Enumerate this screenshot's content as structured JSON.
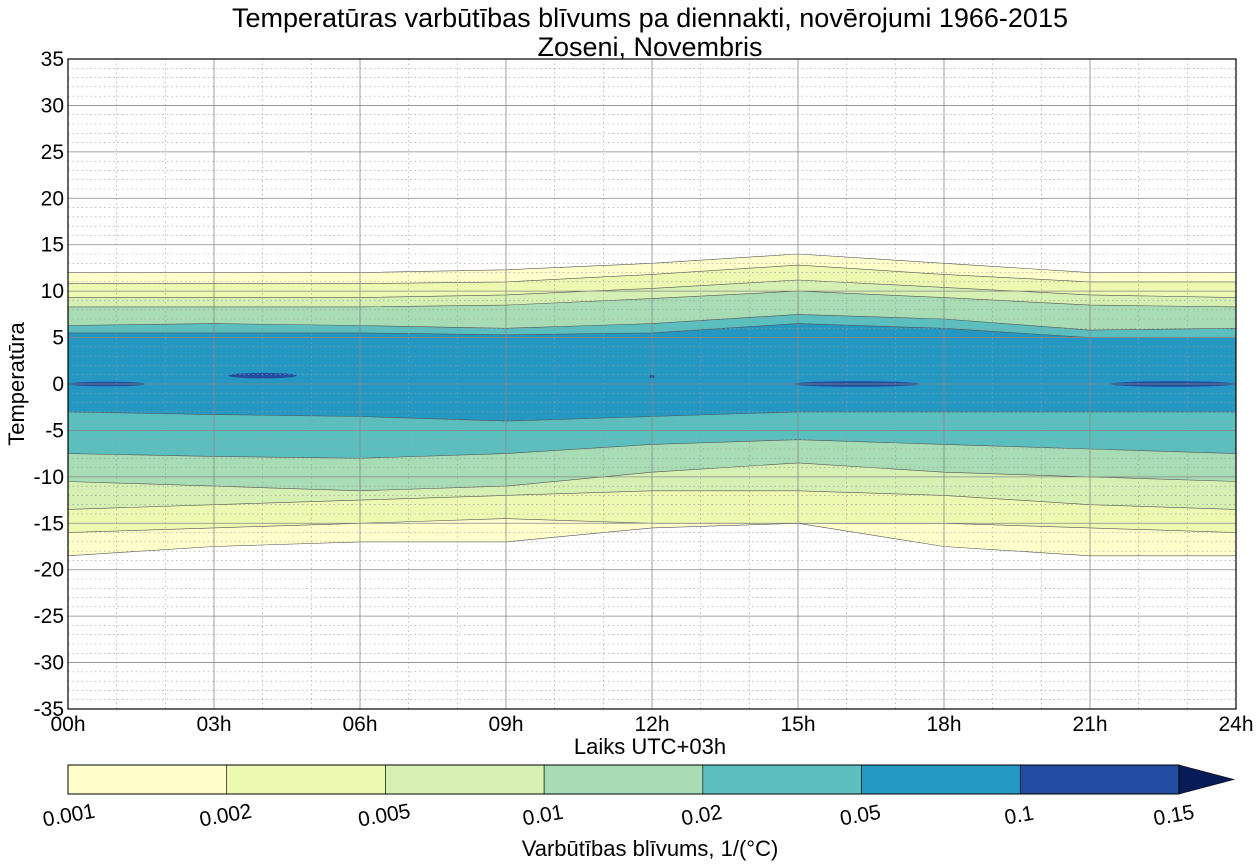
{
  "chart_data": {
    "type": "contour",
    "title": "Temperatūras varbūtības blīvums pa diennakti, novērojumi 1966-2015",
    "subtitle": "Zoseni, Novembris",
    "xlabel": "Laiks UTC+03h",
    "ylabel": "Temperatūra",
    "x_ticks": [
      "00h",
      "03h",
      "06h",
      "09h",
      "12h",
      "15h",
      "18h",
      "21h",
      "24h"
    ],
    "x_range_hours": [
      0,
      24
    ],
    "y_ticks": [
      35,
      30,
      25,
      20,
      15,
      10,
      5,
      0,
      -5,
      -10,
      -15,
      -20,
      -25,
      -30,
      -35
    ],
    "y_range": [
      -35,
      35
    ],
    "grid": true,
    "colorbar": {
      "label": "Varbūtības blīvums, 1/(°C)",
      "levels": [
        "0.001",
        "0.002",
        "0.005",
        "0.01",
        "0.02",
        "0.05",
        "0.1",
        "0.15"
      ],
      "colors": [
        "#FFFFCC",
        "#EDF8B1",
        "#D6EFB3",
        "#A8DCB5",
        "#5BBFC0",
        "#2497C2",
        "#234DA0",
        "#081D58"
      ],
      "extend": "max"
    },
    "contour_bands": [
      {
        "level_min": "0.001",
        "color": "#FFFFCC",
        "upper_edge": [
          [
            0,
            12
          ],
          [
            3,
            12
          ],
          [
            6,
            12
          ],
          [
            9,
            12.3
          ],
          [
            12,
            13
          ],
          [
            15,
            14
          ],
          [
            18,
            13
          ],
          [
            21,
            12
          ],
          [
            24,
            12
          ]
        ],
        "lower_edge": [
          [
            0,
            -18.5
          ],
          [
            3,
            -17.5
          ],
          [
            6,
            -17
          ],
          [
            9,
            -17
          ],
          [
            12,
            -15.5
          ],
          [
            15,
            -15
          ],
          [
            18,
            -17.5
          ],
          [
            21,
            -18.5
          ],
          [
            24,
            -18.5
          ]
        ]
      },
      {
        "level_min": "0.002",
        "color": "#EDF8B1",
        "upper_edge": [
          [
            0,
            10.8
          ],
          [
            3,
            10.8
          ],
          [
            6,
            10.8
          ],
          [
            9,
            11
          ],
          [
            12,
            11.8
          ],
          [
            15,
            12.8
          ],
          [
            18,
            11.8
          ],
          [
            21,
            11
          ],
          [
            24,
            11
          ]
        ],
        "lower_edge": [
          [
            0,
            -16
          ],
          [
            3,
            -15.5
          ],
          [
            6,
            -15
          ],
          [
            9,
            -14.5
          ],
          [
            12,
            -15
          ],
          [
            15,
            -15
          ],
          [
            18,
            -15
          ],
          [
            21,
            -15.5
          ],
          [
            24,
            -16
          ]
        ]
      },
      {
        "level_min": "0.005",
        "color": "#D6EFB3",
        "upper_edge": [
          [
            0,
            9.3
          ],
          [
            3,
            9.3
          ],
          [
            6,
            9.3
          ],
          [
            9,
            9.6
          ],
          [
            12,
            10.3
          ],
          [
            15,
            11.2
          ],
          [
            18,
            10.4
          ],
          [
            21,
            9.6
          ],
          [
            24,
            9.3
          ]
        ],
        "lower_edge": [
          [
            0,
            -13.5
          ],
          [
            3,
            -13
          ],
          [
            6,
            -12.5
          ],
          [
            9,
            -12
          ],
          [
            12,
            -11.5
          ],
          [
            15,
            -11.5
          ],
          [
            18,
            -12
          ],
          [
            21,
            -13
          ],
          [
            24,
            -13.5
          ]
        ]
      },
      {
        "level_min": "0.01",
        "color": "#A8DCB5",
        "upper_edge": [
          [
            0,
            8.3
          ],
          [
            3,
            8.3
          ],
          [
            6,
            8.3
          ],
          [
            9,
            8.5
          ],
          [
            12,
            9.2
          ],
          [
            15,
            10
          ],
          [
            18,
            9.3
          ],
          [
            21,
            8.5
          ],
          [
            24,
            8.3
          ]
        ],
        "lower_edge": [
          [
            0,
            -10.5
          ],
          [
            3,
            -11
          ],
          [
            6,
            -11.5
          ],
          [
            9,
            -11
          ],
          [
            12,
            -9.5
          ],
          [
            15,
            -8.5
          ],
          [
            18,
            -9.5
          ],
          [
            21,
            -10
          ],
          [
            24,
            -10.5
          ]
        ]
      },
      {
        "level_min": "0.02",
        "color": "#5BBFC0",
        "upper_edge": [
          [
            0,
            6.3
          ],
          [
            3,
            6.5
          ],
          [
            6,
            6.3
          ],
          [
            9,
            6
          ],
          [
            12,
            6.5
          ],
          [
            15,
            7.5
          ],
          [
            18,
            7
          ],
          [
            21,
            5.8
          ],
          [
            24,
            6
          ]
        ],
        "lower_edge": [
          [
            0,
            -7.5
          ],
          [
            3,
            -7.8
          ],
          [
            6,
            -8
          ],
          [
            9,
            -7.5
          ],
          [
            12,
            -6.5
          ],
          [
            15,
            -6
          ],
          [
            18,
            -6.5
          ],
          [
            21,
            -7
          ],
          [
            24,
            -7.5
          ]
        ]
      },
      {
        "level_min": "0.05",
        "color": "#2497C2",
        "upper_edge": [
          [
            0,
            5.5
          ],
          [
            3,
            5.5
          ],
          [
            6,
            5.5
          ],
          [
            9,
            5.3
          ],
          [
            12,
            5.5
          ],
          [
            15,
            6.5
          ],
          [
            18,
            6
          ],
          [
            21,
            5
          ],
          [
            24,
            5
          ]
        ],
        "lower_edge": [
          [
            0,
            -3
          ],
          [
            3,
            -3.3
          ],
          [
            6,
            -3.5
          ],
          [
            9,
            -4
          ],
          [
            12,
            -3.5
          ],
          [
            15,
            -3
          ],
          [
            18,
            -3
          ],
          [
            21,
            -3
          ],
          [
            24,
            -3
          ]
        ]
      },
      {
        "level_min": "0.1",
        "color": "#234DA0",
        "patches": [
          {
            "center_hour": 0.8,
            "center_temp": 0,
            "half_width_hours": 0.8,
            "half_height_temp": 0.25
          },
          {
            "center_hour": 4.0,
            "center_temp": 0.9,
            "half_width_hours": 0.7,
            "half_height_temp": 0.3
          },
          {
            "center_hour": 12.0,
            "center_temp": 0.8,
            "half_width_hours": 0.05,
            "half_height_temp": 0.2
          },
          {
            "center_hour": 16.2,
            "center_temp": 0,
            "half_width_hours": 1.3,
            "half_height_temp": 0.3
          },
          {
            "center_hour": 22.7,
            "center_temp": 0,
            "half_width_hours": 1.3,
            "half_height_temp": 0.3
          }
        ]
      }
    ]
  }
}
